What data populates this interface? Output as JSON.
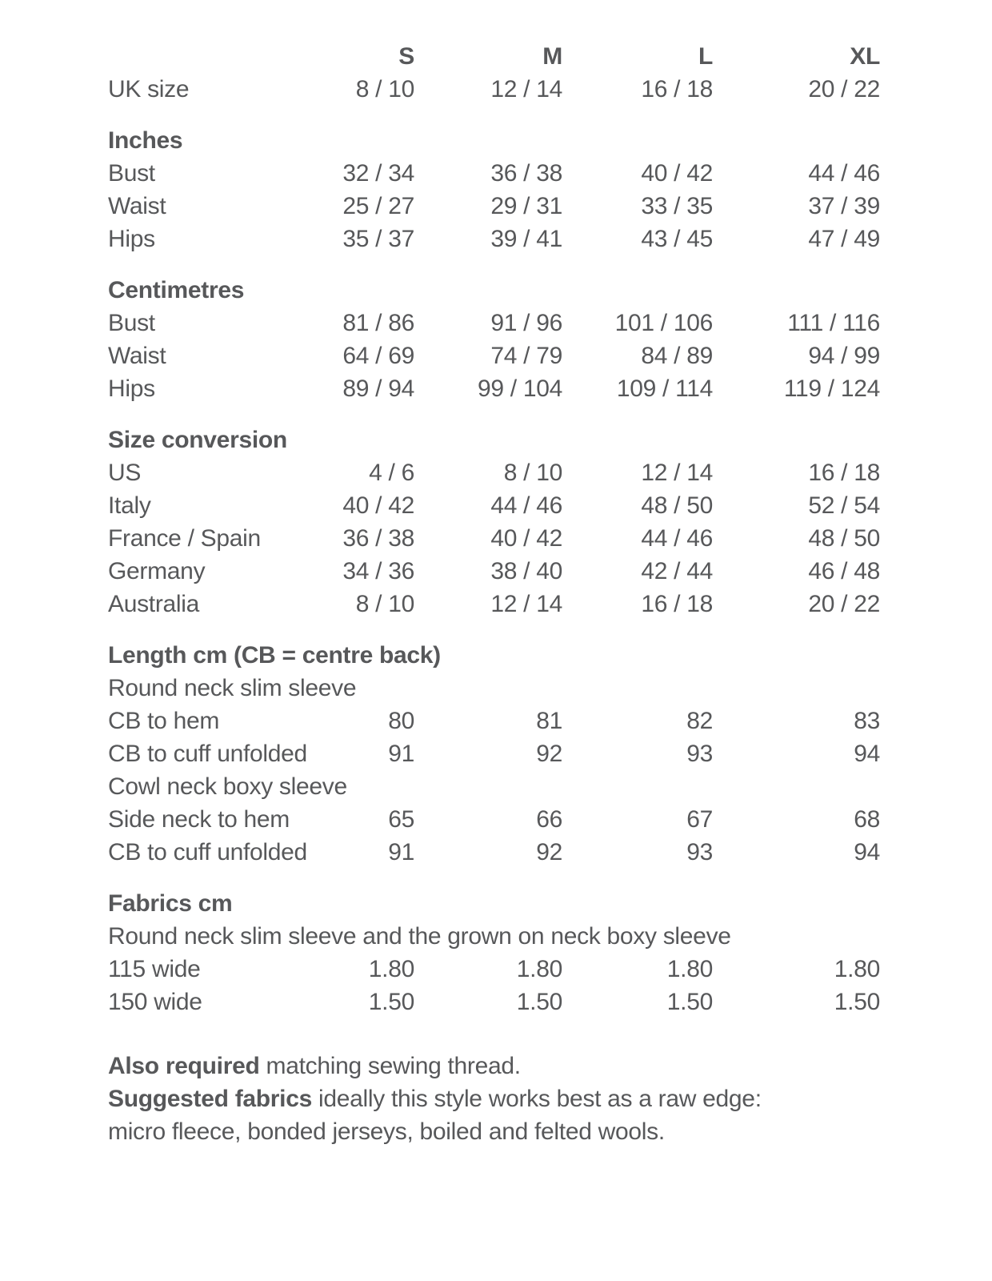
{
  "page": {
    "background": "#ffffff",
    "text_color": "#57585a"
  },
  "size_chart": {
    "columns": [
      "S",
      "M",
      "L",
      "XL"
    ],
    "uk_size": {
      "label": "UK size",
      "values": [
        "8 / 10",
        "12 / 14",
        "16 / 18",
        "20 / 22"
      ]
    },
    "inches": {
      "heading": "Inches",
      "rows": [
        {
          "label": "Bust",
          "values": [
            "32 / 34",
            "36 / 38",
            "40 / 42",
            "44 / 46"
          ]
        },
        {
          "label": "Waist",
          "values": [
            "25 / 27",
            "29 / 31",
            "33 / 35",
            "37 / 39"
          ]
        },
        {
          "label": "Hips",
          "values": [
            "35 / 37",
            "39 / 41",
            "43 / 45",
            "47 / 49"
          ]
        }
      ]
    },
    "centimetres": {
      "heading": "Centimetres",
      "rows": [
        {
          "label": "Bust",
          "values": [
            "81 / 86",
            "91 / 96",
            "101 / 106",
            "111 / 116"
          ]
        },
        {
          "label": "Waist",
          "values": [
            "64 / 69",
            "74 / 79",
            "84 / 89",
            "94 / 99"
          ]
        },
        {
          "label": "Hips",
          "values": [
            "89 / 94",
            "99 / 104",
            "109 / 114",
            "119 / 124"
          ]
        }
      ]
    },
    "size_conversion": {
      "heading": "Size conversion",
      "rows": [
        {
          "label": "US",
          "values": [
            "4 / 6",
            "8 / 10",
            "12 / 14",
            "16 / 18"
          ]
        },
        {
          "label": "Italy",
          "values": [
            "40 / 42",
            "44 / 46",
            "48 / 50",
            "52 / 54"
          ]
        },
        {
          "label": "France / Spain",
          "values": [
            "36 / 38",
            "40 / 42",
            "44 / 46",
            "48 / 50"
          ]
        },
        {
          "label": "Germany",
          "values": [
            "34 / 36",
            "38 / 40",
            "42 / 44",
            "46 / 48"
          ]
        },
        {
          "label": "Australia",
          "values": [
            "8 / 10",
            "12 / 14",
            "16 / 18",
            "20 / 22"
          ]
        }
      ]
    },
    "length": {
      "heading": "Length cm (CB = centre back)",
      "groups": [
        {
          "subheading": "Round neck slim sleeve",
          "rows": [
            {
              "label": "CB to hem",
              "values": [
                "80",
                "81",
                "82",
                "83"
              ]
            },
            {
              "label": "CB to cuff unfolded",
              "values": [
                "91",
                "92",
                "93",
                "94"
              ]
            }
          ]
        },
        {
          "subheading": "Cowl neck boxy sleeve",
          "rows": [
            {
              "label": "Side neck to hem",
              "values": [
                "65",
                "66",
                "67",
                "68"
              ]
            },
            {
              "label": "CB to cuff unfolded",
              "values": [
                "91",
                "92",
                "93",
                "94"
              ]
            }
          ]
        }
      ]
    },
    "fabrics": {
      "heading": "Fabrics cm",
      "subheading": "Round neck slim sleeve and the grown on neck boxy sleeve",
      "rows": [
        {
          "label": "115 wide",
          "values": [
            "1.80",
            "1.80",
            "1.80",
            "1.80"
          ]
        },
        {
          "label": "150 wide",
          "values": [
            "1.50",
            "1.50",
            "1.50",
            "1.50"
          ]
        }
      ]
    },
    "notes": [
      {
        "bold": "Also required",
        "rest": " matching sewing thread."
      },
      {
        "bold": "Suggested fabrics",
        "rest": " ideally this style works best as a raw edge:"
      },
      {
        "bold": "",
        "rest": "micro fleece, bonded jerseys, boiled and felted wools."
      }
    ]
  }
}
